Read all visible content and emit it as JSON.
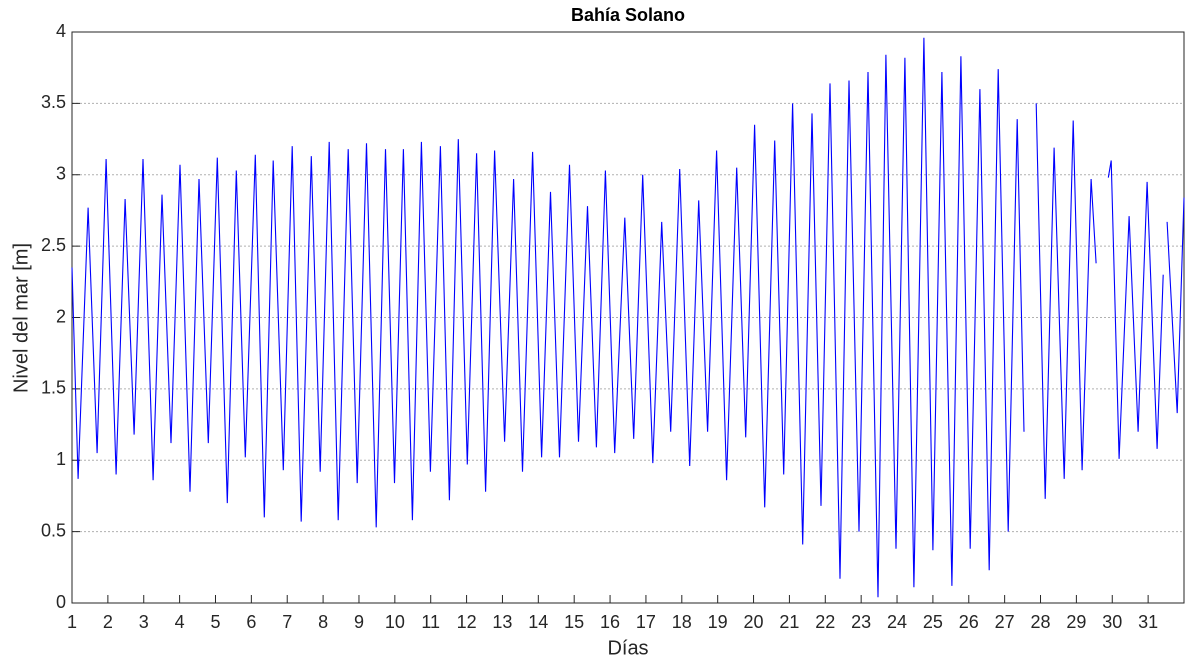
{
  "chart_data": {
    "type": "line",
    "title": "Bahía Solano",
    "xlabel": "Días",
    "ylabel": "Nivel del mar [m]",
    "xlim": [
      1,
      32
    ],
    "ylim": [
      0,
      4
    ],
    "xticks": [
      1,
      2,
      3,
      4,
      5,
      6,
      7,
      8,
      9,
      10,
      11,
      12,
      13,
      14,
      15,
      16,
      17,
      18,
      19,
      20,
      21,
      22,
      23,
      24,
      25,
      26,
      27,
      28,
      29,
      30,
      31
    ],
    "yticks": [
      0,
      0.5,
      1,
      1.5,
      2,
      2.5,
      3,
      3.5,
      4
    ],
    "grid": true,
    "series": [
      {
        "color": "#0000ff",
        "x": [
          1.0,
          1.17,
          1.45,
          1.7,
          1.95,
          2.23,
          2.48,
          2.73,
          2.98,
          3.26,
          3.51,
          3.76,
          4.01,
          4.29,
          4.54,
          4.8,
          5.05,
          5.33,
          5.58,
          5.83,
          6.11,
          6.36,
          6.61,
          6.89,
          7.14,
          7.39,
          7.67,
          7.92,
          8.17,
          8.42,
          8.7,
          8.95,
          9.21,
          9.48,
          9.74,
          9.99,
          10.24,
          10.49,
          10.74,
          10.99,
          11.27,
          11.52,
          11.77,
          12.02,
          12.28,
          12.53,
          12.78,
          13.06,
          13.31,
          13.56,
          13.84,
          14.09,
          14.34,
          14.59,
          14.87,
          15.12,
          15.37,
          15.62,
          15.87,
          16.13,
          16.41,
          16.66,
          16.91,
          17.19,
          17.44,
          17.69,
          17.94,
          18.22,
          18.47,
          18.72,
          18.97,
          19.25,
          19.53,
          19.78,
          20.03,
          20.31,
          20.59,
          20.84,
          21.09,
          21.37,
          21.63,
          21.88,
          22.13,
          22.41,
          22.66,
          22.94,
          23.19,
          23.47,
          23.69,
          23.97,
          24.22,
          24.47,
          24.75,
          25.0,
          25.25,
          25.53,
          25.78,
          26.04,
          26.31,
          26.57,
          26.82,
          27.1,
          27.35,
          27.54,
          null,
          27.88,
          28.13,
          28.38,
          28.66,
          28.91,
          29.16,
          29.41,
          29.55,
          null,
          29.89,
          29.97,
          30.19,
          30.47,
          30.72,
          30.97,
          31.25,
          31.42,
          null,
          31.53,
          31.81,
          32.0
        ],
        "values": [
          2.35,
          0.87,
          2.77,
          1.05,
          3.11,
          0.9,
          2.83,
          1.18,
          3.11,
          0.86,
          2.86,
          1.12,
          3.07,
          0.78,
          2.97,
          1.12,
          3.12,
          0.7,
          3.03,
          1.02,
          3.14,
          0.6,
          3.1,
          0.93,
          3.2,
          0.57,
          3.13,
          0.92,
          3.23,
          0.58,
          3.18,
          0.84,
          3.22,
          0.53,
          3.18,
          0.84,
          3.18,
          0.58,
          3.23,
          0.92,
          3.2,
          0.72,
          3.25,
          0.97,
          3.15,
          0.78,
          3.17,
          1.13,
          2.97,
          0.92,
          3.16,
          1.02,
          2.88,
          1.02,
          3.07,
          1.13,
          2.78,
          1.09,
          3.03,
          1.05,
          2.7,
          1.15,
          3.0,
          0.98,
          2.67,
          1.2,
          3.04,
          0.96,
          2.82,
          1.2,
          3.17,
          0.86,
          3.05,
          1.16,
          3.35,
          0.67,
          3.24,
          0.9,
          3.5,
          0.41,
          3.43,
          0.68,
          3.64,
          0.17,
          3.66,
          0.5,
          3.72,
          0.04,
          3.84,
          0.38,
          3.82,
          0.11,
          3.96,
          0.37,
          3.72,
          0.12,
          3.83,
          0.38,
          3.6,
          0.23,
          3.74,
          0.5,
          3.39,
          1.2,
          null,
          3.5,
          0.73,
          3.19,
          0.87,
          3.38,
          0.93,
          2.97,
          2.38,
          null,
          2.98,
          3.1,
          1.01,
          2.71,
          1.2,
          2.95,
          1.08,
          2.3,
          null,
          2.67,
          1.33,
          2.84
        ]
      }
    ]
  }
}
